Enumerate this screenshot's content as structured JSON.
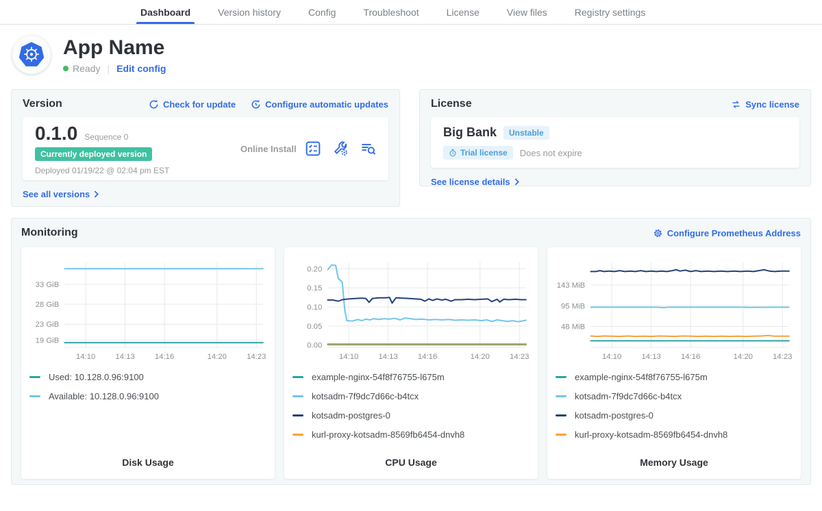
{
  "nav": {
    "tabs": [
      {
        "label": "Dashboard",
        "active": true
      },
      {
        "label": "Version history",
        "active": false
      },
      {
        "label": "Config",
        "active": false
      },
      {
        "label": "Troubleshoot",
        "active": false
      },
      {
        "label": "License",
        "active": false
      },
      {
        "label": "View files",
        "active": false
      },
      {
        "label": "Registry settings",
        "active": false
      }
    ]
  },
  "app_header": {
    "title": "App Name",
    "status": "Ready",
    "edit_config_label": "Edit config"
  },
  "version_card": {
    "title": "Version",
    "check_update_label": "Check for update",
    "auto_updates_label": "Configure automatic updates",
    "version_number": "0.1.0",
    "sequence": "Sequence 0",
    "deployed_badge": "Currently deployed version",
    "install_type": "Online Install",
    "deployed_at": "Deployed 01/19/22 @ 02:04 pm EST",
    "see_all_label": "See all versions"
  },
  "license_card": {
    "title": "License",
    "sync_label": "Sync license",
    "customer_name": "Big Bank",
    "channel_badge": "Unstable",
    "trial_badge": "Trial license",
    "expiry": "Does not expire",
    "details_label": "See license details"
  },
  "monitoring": {
    "title": "Monitoring",
    "configure_label": "Configure Prometheus Address"
  },
  "icons": {
    "app_logo": "kubernetes-logo",
    "check_update": "refresh-icon",
    "auto_updates": "clock-refresh-icon",
    "preflight": "checklist-icon",
    "config": "wrench-gear-icon",
    "logs": "log-search-icon",
    "sync": "swap-arrows-icon",
    "trial": "stopwatch-icon",
    "prometheus": "gear-icon",
    "see_more": "chevron-right-icon"
  },
  "colors": {
    "accent_blue": "#326de6",
    "status_green": "#44bb66",
    "deployed_badge_green": "#40c1a0",
    "badge_blue_bg": "#e6f3fb",
    "badge_blue_text": "#4a9fd6",
    "text_dark": "#323232",
    "text_gray": "#9b9b9b",
    "series_teal": "#2aa3a3",
    "series_sky": "#72c5ec",
    "series_navy": "#25417d",
    "series_orange": "#f9a13d"
  },
  "chart_data": [
    {
      "type": "line",
      "title": "Disk Usage",
      "grid": true,
      "legend_position": "below",
      "x_range": [
        8.4,
        23.5
      ],
      "y_range": [
        17.2,
        38.5
      ],
      "x_ticks": [
        {
          "v": 10,
          "label": "14:10"
        },
        {
          "v": 13,
          "label": "14:13"
        },
        {
          "v": 16,
          "label": "14:16"
        },
        {
          "v": 20,
          "label": "14:20"
        },
        {
          "v": 23,
          "label": "14:23"
        }
      ],
      "y_ticks": [
        {
          "v": 19,
          "label": "19 GiB"
        },
        {
          "v": 23,
          "label": "23 GiB"
        },
        {
          "v": 28,
          "label": "28 GiB"
        },
        {
          "v": 33,
          "label": "33 GiB"
        }
      ],
      "series": [
        {
          "name": "Used: 10.128.0.96:9100",
          "color": "#2aa3a3",
          "points": [
            [
              8.4,
              18.35
            ],
            [
              23.5,
              18.35
            ]
          ]
        },
        {
          "name": "Available: 10.128.0.96:9100",
          "color": "#72c5ec",
          "points": [
            [
              8.4,
              36.9
            ],
            [
              23.5,
              36.9
            ]
          ]
        }
      ]
    },
    {
      "type": "line",
      "title": "CPU Usage",
      "grid": true,
      "legend_position": "below",
      "x_range": [
        8.4,
        23.5
      ],
      "y_range": [
        -0.006,
        0.217
      ],
      "x_ticks": [
        {
          "v": 10,
          "label": "14:10"
        },
        {
          "v": 13,
          "label": "14:13"
        },
        {
          "v": 16,
          "label": "14:16"
        },
        {
          "v": 20,
          "label": "14:20"
        },
        {
          "v": 23,
          "label": "14:23"
        }
      ],
      "y_ticks": [
        {
          "v": 0,
          "label": "0.00"
        },
        {
          "v": 0.05,
          "label": "0.05"
        },
        {
          "v": 0.1,
          "label": "0.10"
        },
        {
          "v": 0.15,
          "label": "0.15"
        },
        {
          "v": 0.2,
          "label": "0.20"
        }
      ],
      "series": [
        {
          "name": "example-nginx-54f8f76755-l675m",
          "color": "#2aa3a3",
          "points": [
            [
              8.4,
              0.001
            ],
            [
              23.5,
              0.001
            ]
          ]
        },
        {
          "name": "kotsadm-7f9dc7d66c-b4tcx",
          "color": "#72c5ec",
          "points": [
            [
              8.4,
              0.198
            ],
            [
              8.7,
              0.21
            ],
            [
              9.0,
              0.209
            ],
            [
              9.2,
              0.175
            ],
            [
              9.5,
              0.165
            ],
            [
              9.7,
              0.09
            ],
            [
              9.85,
              0.064
            ],
            [
              10.3,
              0.063
            ],
            [
              10.7,
              0.067
            ],
            [
              11.0,
              0.064
            ],
            [
              11.3,
              0.068
            ],
            [
              11.6,
              0.066
            ],
            [
              11.9,
              0.069
            ],
            [
              12.3,
              0.067
            ],
            [
              12.7,
              0.069
            ],
            [
              13.1,
              0.068
            ],
            [
              13.5,
              0.07
            ],
            [
              13.9,
              0.066
            ],
            [
              14.3,
              0.071
            ],
            [
              14.7,
              0.069
            ],
            [
              15.1,
              0.067
            ],
            [
              15.6,
              0.068
            ],
            [
              16.1,
              0.066
            ],
            [
              16.6,
              0.067
            ],
            [
              17.1,
              0.066
            ],
            [
              17.6,
              0.067
            ],
            [
              18.1,
              0.065
            ],
            [
              18.6,
              0.066
            ],
            [
              19.1,
              0.065
            ],
            [
              19.6,
              0.066
            ],
            [
              20.1,
              0.064
            ],
            [
              20.5,
              0.066
            ],
            [
              20.9,
              0.062
            ],
            [
              21.3,
              0.066
            ],
            [
              21.7,
              0.064
            ],
            [
              22.1,
              0.062
            ],
            [
              22.5,
              0.064
            ],
            [
              22.9,
              0.061
            ],
            [
              23.2,
              0.063
            ],
            [
              23.5,
              0.065
            ]
          ]
        },
        {
          "name": "kotsadm-postgres-0",
          "color": "#25417d",
          "points": [
            [
              8.4,
              0.118
            ],
            [
              8.8,
              0.118
            ],
            [
              9.2,
              0.115
            ],
            [
              9.5,
              0.119
            ],
            [
              10.0,
              0.121
            ],
            [
              10.5,
              0.122
            ],
            [
              11.0,
              0.123
            ],
            [
              11.3,
              0.122
            ],
            [
              11.55,
              0.112
            ],
            [
              11.8,
              0.122
            ],
            [
              12.3,
              0.124
            ],
            [
              12.8,
              0.124
            ],
            [
              13.1,
              0.125
            ],
            [
              13.3,
              0.11
            ],
            [
              13.6,
              0.124
            ],
            [
              14.1,
              0.123
            ],
            [
              14.6,
              0.122
            ],
            [
              15.1,
              0.121
            ],
            [
              15.5,
              0.12
            ],
            [
              15.8,
              0.115
            ],
            [
              16.1,
              0.121
            ],
            [
              16.4,
              0.117
            ],
            [
              16.7,
              0.121
            ],
            [
              17.1,
              0.118
            ],
            [
              17.4,
              0.12
            ],
            [
              17.8,
              0.115
            ],
            [
              18.1,
              0.119
            ],
            [
              18.6,
              0.119
            ],
            [
              19.1,
              0.12
            ],
            [
              19.6,
              0.119
            ],
            [
              20.1,
              0.12
            ],
            [
              20.6,
              0.121
            ],
            [
              20.9,
              0.114
            ],
            [
              21.3,
              0.12
            ],
            [
              21.5,
              0.113
            ],
            [
              21.8,
              0.12
            ],
            [
              22.2,
              0.119
            ],
            [
              22.7,
              0.12
            ],
            [
              23.1,
              0.119
            ],
            [
              23.5,
              0.119
            ]
          ]
        },
        {
          "name": "kurl-proxy-kotsadm-8569fb6454-dnvh8",
          "color": "#f9a13d",
          "points": [
            [
              8.4,
              0.003
            ],
            [
              23.5,
              0.003
            ]
          ]
        }
      ]
    },
    {
      "type": "line",
      "title": "Memory Usage",
      "grid": true,
      "legend_position": "below",
      "x_range": [
        8.4,
        23.5
      ],
      "y_range": [
        0,
        195
      ],
      "x_ticks": [
        {
          "v": 10,
          "label": "14:10"
        },
        {
          "v": 13,
          "label": "14:13"
        },
        {
          "v": 16,
          "label": "14:16"
        },
        {
          "v": 20,
          "label": "14:20"
        },
        {
          "v": 23,
          "label": "14:23"
        }
      ],
      "y_ticks": [
        {
          "v": 48,
          "label": "48 MiB"
        },
        {
          "v": 95,
          "label": "95 MiB"
        },
        {
          "v": 143,
          "label": "143 MiB"
        }
      ],
      "series": [
        {
          "name": "example-nginx-54f8f76755-l675m",
          "color": "#2aa3a3",
          "points": [
            [
              8.4,
              15
            ],
            [
              23.5,
              15
            ]
          ]
        },
        {
          "name": "kotsadm-7f9dc7d66c-b4tcx",
          "color": "#72c5ec",
          "points": [
            [
              8.4,
              92
            ],
            [
              13.5,
              92
            ],
            [
              13.9,
              91
            ],
            [
              14.3,
              92
            ],
            [
              20.0,
              92
            ],
            [
              20.4,
              91.5
            ],
            [
              23.5,
              92
            ]
          ]
        },
        {
          "name": "kotsadm-postgres-0",
          "color": "#25417d",
          "points": [
            [
              8.4,
              174
            ],
            [
              8.8,
              174
            ],
            [
              9.1,
              176
            ],
            [
              9.4,
              174
            ],
            [
              9.8,
              175
            ],
            [
              10.2,
              174
            ],
            [
              10.6,
              176
            ],
            [
              11.0,
              174
            ],
            [
              11.4,
              175
            ],
            [
              11.8,
              174
            ],
            [
              12.2,
              176
            ],
            [
              12.6,
              174
            ],
            [
              13.0,
              175
            ],
            [
              13.4,
              174
            ],
            [
              13.8,
              175
            ],
            [
              14.2,
              174
            ],
            [
              14.6,
              176
            ],
            [
              14.9,
              178
            ],
            [
              15.2,
              175
            ],
            [
              15.6,
              177
            ],
            [
              16.0,
              174
            ],
            [
              16.4,
              176
            ],
            [
              16.8,
              174
            ],
            [
              17.3,
              175
            ],
            [
              17.8,
              174
            ],
            [
              18.3,
              175
            ],
            [
              18.8,
              174
            ],
            [
              19.3,
              175
            ],
            [
              19.8,
              174
            ],
            [
              20.3,
              175
            ],
            [
              20.8,
              174
            ],
            [
              21.2,
              176
            ],
            [
              21.6,
              178
            ],
            [
              22.0,
              175
            ],
            [
              22.4,
              174
            ],
            [
              22.9,
              175
            ],
            [
              23.5,
              175
            ]
          ]
        },
        {
          "name": "kurl-proxy-kotsadm-8569fb6454-dnvh8",
          "color": "#f9a13d",
          "points": [
            [
              8.4,
              26
            ],
            [
              8.9,
              25
            ],
            [
              9.4,
              26
            ],
            [
              10.0,
              25.5
            ],
            [
              10.6,
              25
            ],
            [
              11.2,
              26
            ],
            [
              11.8,
              25
            ],
            [
              12.4,
              25.5
            ],
            [
              13.0,
              25
            ],
            [
              13.6,
              26
            ],
            [
              14.2,
              25.5
            ],
            [
              14.8,
              25
            ],
            [
              15.4,
              26
            ],
            [
              16.0,
              25.5
            ],
            [
              16.6,
              25
            ],
            [
              17.2,
              25.5
            ],
            [
              17.8,
              25
            ],
            [
              18.4,
              25.5
            ],
            [
              19.0,
              25
            ],
            [
              19.6,
              25.5
            ],
            [
              20.2,
              25
            ],
            [
              20.8,
              25.5
            ],
            [
              21.4,
              26
            ],
            [
              21.9,
              27
            ],
            [
              22.4,
              25.5
            ],
            [
              23.0,
              25.5
            ],
            [
              23.5,
              25.5
            ]
          ]
        }
      ]
    }
  ]
}
